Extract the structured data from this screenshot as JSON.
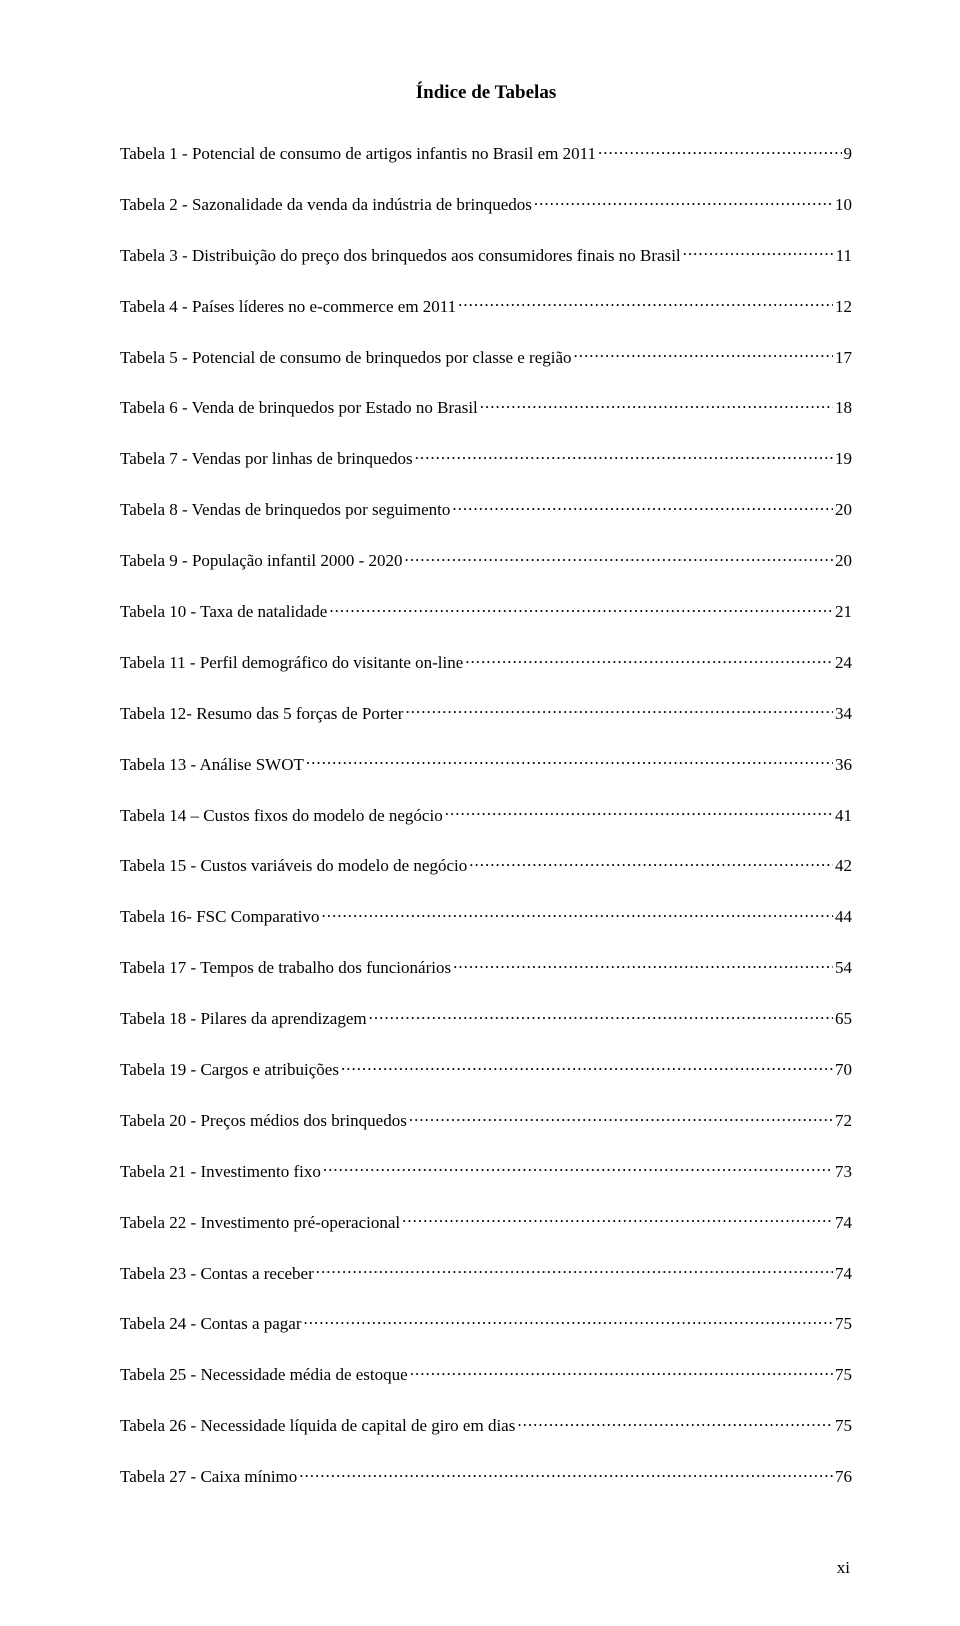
{
  "title": "Índice de Tabelas",
  "footer_page": "xi",
  "entries": [
    {
      "label": "Tabela 1 - Potencial de consumo de artigos infantis no Brasil em 2011",
      "page": "9"
    },
    {
      "label": "Tabela 2 - Sazonalidade da venda da indústria de brinquedos",
      "page": "10"
    },
    {
      "label": "Tabela 3 - Distribuição do preço dos brinquedos aos consumidores finais no Brasil",
      "page": "11"
    },
    {
      "label": "Tabela 4 - Países líderes no e-commerce em 2011",
      "page": "12"
    },
    {
      "label": "Tabela 5 - Potencial de consumo de brinquedos por classe e região",
      "page": "17"
    },
    {
      "label": "Tabela 6 - Venda de brinquedos por Estado no Brasil",
      "page": "18"
    },
    {
      "label": "Tabela 7 - Vendas por linhas de brinquedos",
      "page": "19"
    },
    {
      "label": "Tabela 8 - Vendas de brinquedos por seguimento",
      "page": "20"
    },
    {
      "label": "Tabela 9 - População infantil 2000 - 2020",
      "page": "20"
    },
    {
      "label": "Tabela 10 - Taxa de natalidade",
      "page": "21"
    },
    {
      "label": "Tabela 11 - Perfil demográfico do visitante on-line",
      "page": "24"
    },
    {
      "label": "Tabela 12- Resumo das 5 forças de Porter",
      "page": "34"
    },
    {
      "label": "Tabela 13 - Análise SWOT",
      "page": "36"
    },
    {
      "label": "Tabela 14 – Custos fixos do modelo de negócio",
      "page": "41"
    },
    {
      "label": "Tabela 15 - Custos variáveis do modelo de negócio",
      "page": "42"
    },
    {
      "label": "Tabela 16- FSC Comparativo",
      "page": "44"
    },
    {
      "label": "Tabela 17 - Tempos de trabalho dos funcionários",
      "page": "54"
    },
    {
      "label": "Tabela 18 - Pilares da aprendizagem",
      "page": "65"
    },
    {
      "label": "Tabela 19 - Cargos e atribuições",
      "page": "70"
    },
    {
      "label": "Tabela 20 - Preços médios dos brinquedos",
      "page": "72"
    },
    {
      "label": "Tabela 21 - Investimento fixo",
      "page": "73"
    },
    {
      "label": "Tabela 22 - Investimento pré-operacional",
      "page": "74"
    },
    {
      "label": "Tabela 23 - Contas a receber",
      "page": "74"
    },
    {
      "label": "Tabela 24 - Contas a pagar",
      "page": "75"
    },
    {
      "label": "Tabela 25 - Necessidade média de estoque",
      "page": "75"
    },
    {
      "label": "Tabela 26 - Necessidade líquida de capital de giro em dias",
      "page": "75"
    },
    {
      "label": "Tabela 27 - Caixa mínimo",
      "page": "76"
    }
  ]
}
